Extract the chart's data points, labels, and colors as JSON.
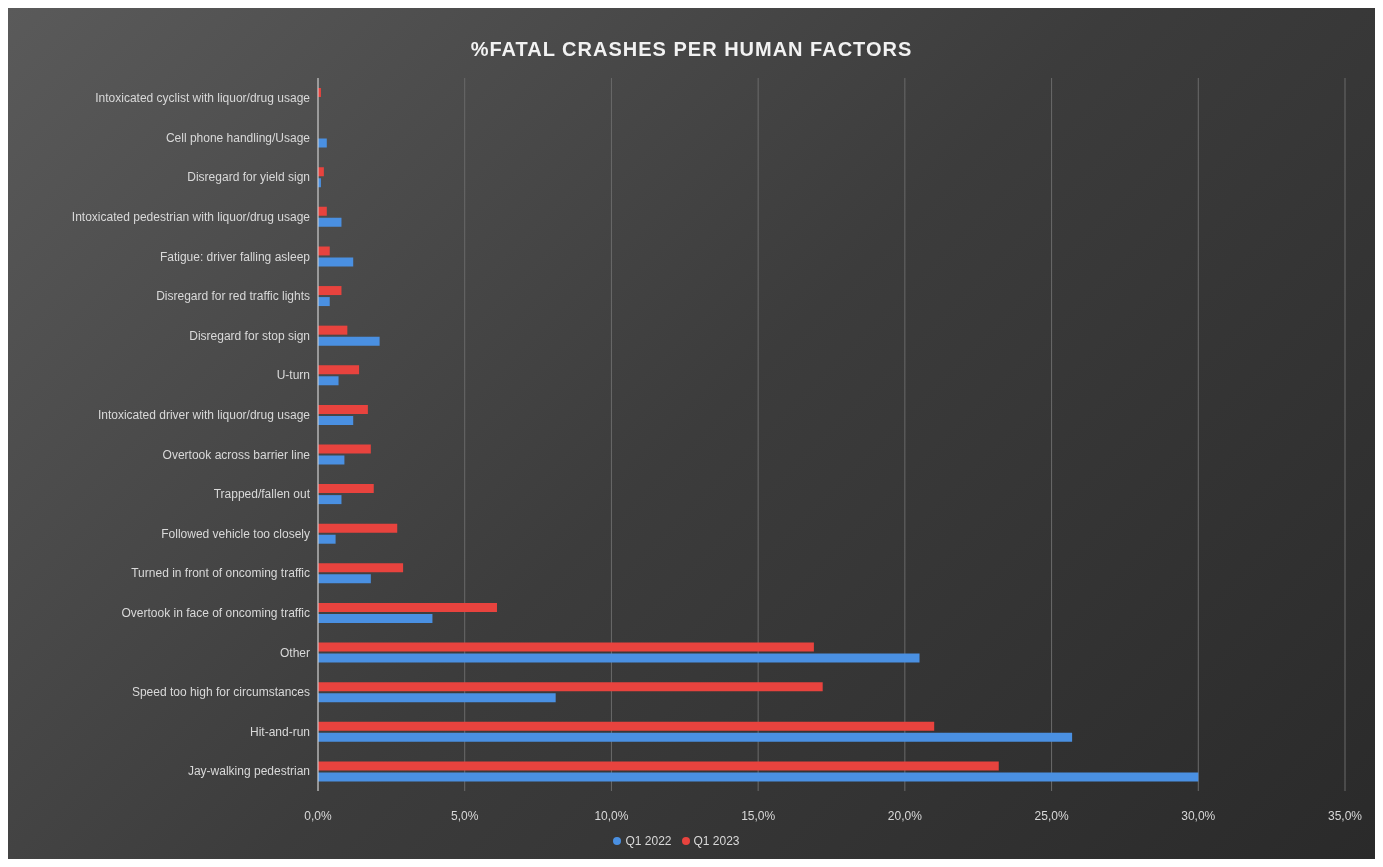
{
  "chart_data": {
    "type": "bar",
    "orientation": "horizontal",
    "title": "%FATAL CRASHES PER HUMAN FACTORS",
    "categories": [
      "Intoxicated cyclist with liquor/drug usage",
      "Cell phone handling/Usage",
      "Disregard for yield sign",
      "Intoxicated pedestrian with liquor/drug usage",
      "Fatigue: driver falling asleep",
      "Disregard for red traffic lights",
      "Disregard for stop sign",
      "U-turn",
      "Intoxicated driver with liquor/drug usage",
      "Overtook across barrier line",
      "Trapped/fallen out",
      "Followed vehicle too closely",
      "Turned in front of oncoming traffic",
      "Overtook in face of oncoming traffic",
      "Other",
      "Speed too high for circumstances",
      "Hit-and-run",
      "Jay-walking pedestrian"
    ],
    "series": [
      {
        "name": "Q1 2023",
        "color": "#e8433e",
        "values": [
          0.1,
          0,
          0.2,
          0.3,
          0.4,
          0.8,
          1.0,
          1.4,
          1.7,
          1.8,
          1.9,
          2.7,
          2.9,
          6.1,
          16.9,
          17.2,
          21.0,
          23.2
        ]
      },
      {
        "name": "Q1 2022",
        "color": "#4a90e2",
        "values": [
          0,
          0.3,
          0.1,
          0.8,
          1.2,
          0.4,
          2.1,
          0.7,
          1.2,
          0.9,
          0.8,
          0.6,
          1.8,
          3.9,
          20.5,
          8.1,
          25.7,
          30.0
        ]
      }
    ],
    "xlim": [
      0,
      35
    ],
    "xticks": [
      {
        "value": 0,
        "label": "0,0%"
      },
      {
        "value": 5,
        "label": "5,0%"
      },
      {
        "value": 10,
        "label": "10,0%"
      },
      {
        "value": 15,
        "label": "15,0%"
      },
      {
        "value": 20,
        "label": "20,0%"
      },
      {
        "value": 25,
        "label": "25,0%"
      },
      {
        "value": 30,
        "label": "30,0%"
      },
      {
        "value": 35,
        "label": "35,0%"
      }
    ],
    "grid": "x",
    "legend": "bottom"
  }
}
